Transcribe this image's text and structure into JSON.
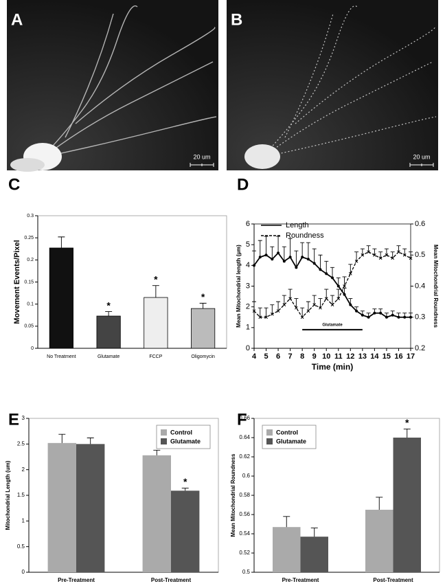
{
  "images": [
    {
      "letter": "A",
      "scale_bar": "20 um"
    },
    {
      "letter": "B",
      "scale_bar": "20 um"
    }
  ],
  "chart_data": [
    {
      "type": "bar",
      "letter": "C",
      "ylabel": "Movement Events/Pixel",
      "categories": [
        "No Treatment",
        "Glutamate",
        "FCCP",
        "Oligomycin"
      ],
      "values": [
        0.227,
        0.073,
        0.115,
        0.09
      ],
      "errors": [
        0.025,
        0.01,
        0.027,
        0.012
      ],
      "colors": [
        "#111111",
        "#444444",
        "#eeeeee",
        "#bbbbbb"
      ],
      "ylim": [
        0,
        0.3
      ],
      "yticks": [
        0,
        0.05,
        0.1,
        0.15,
        0.2,
        0.25,
        0.3
      ],
      "annotations": [
        {
          "text": "*",
          "index": 1
        },
        {
          "text": "*",
          "index": 2
        },
        {
          "text": "*",
          "index": 3
        }
      ]
    },
    {
      "type": "line",
      "letter": "D",
      "xlabel": "Time (min)",
      "ylabel": "Mean Mitochondrial length (µm)",
      "y2label": "Mean Mitochondrial Roundness",
      "x": [
        4,
        4.5,
        5,
        5.5,
        6,
        6.5,
        7,
        7.5,
        8,
        8.5,
        9,
        9.5,
        10,
        10.5,
        11,
        11.5,
        12,
        12.5,
        13,
        13.5,
        14,
        14.5,
        15,
        15.5,
        16,
        16.5,
        17
      ],
      "series": [
        {
          "name": "Length",
          "color": "#000000",
          "values": [
            4.0,
            4.4,
            4.5,
            4.3,
            4.6,
            4.2,
            4.4,
            3.9,
            4.4,
            4.3,
            4.1,
            3.8,
            3.6,
            3.4,
            3.0,
            2.6,
            2.1,
            1.8,
            1.6,
            1.5,
            1.7,
            1.7,
            1.5,
            1.6,
            1.5,
            1.5,
            1.5
          ],
          "errors": [
            0.7,
            0.8,
            0.9,
            0.6,
            0.8,
            0.7,
            0.9,
            0.8,
            0.7,
            0.8,
            0.7,
            0.7,
            0.6,
            0.5,
            0.4,
            0.3,
            0.3,
            0.2,
            0.2,
            0.2,
            0.2,
            0.2,
            0.2,
            0.2,
            0.2,
            0.2,
            0.2
          ]
        },
        {
          "name": "Roundness",
          "color": "#000000",
          "axis": "y2",
          "dash": true,
          "values": [
            0.32,
            0.3,
            0.3,
            0.31,
            0.32,
            0.34,
            0.36,
            0.33,
            0.3,
            0.32,
            0.34,
            0.33,
            0.36,
            0.34,
            0.36,
            0.4,
            0.44,
            0.48,
            0.5,
            0.51,
            0.5,
            0.49,
            0.5,
            0.49,
            0.51,
            0.5,
            0.49
          ],
          "errors": [
            0.03,
            0.03,
            0.03,
            0.03,
            0.03,
            0.03,
            0.03,
            0.03,
            0.03,
            0.03,
            0.03,
            0.03,
            0.03,
            0.03,
            0.03,
            0.03,
            0.03,
            0.03,
            0.02,
            0.02,
            0.02,
            0.02,
            0.02,
            0.02,
            0.02,
            0.02,
            0.02
          ]
        }
      ],
      "xlim": [
        4,
        17
      ],
      "xticks": [
        4,
        5,
        6,
        7,
        8,
        9,
        10,
        11,
        12,
        13,
        14,
        15,
        16,
        17
      ],
      "ylim": [
        0,
        6
      ],
      "yticks": [
        0,
        1,
        2,
        3,
        4,
        5,
        6
      ],
      "y2lim": [
        0.2,
        0.6
      ],
      "y2ticks": [
        0.2,
        0.3,
        0.4,
        0.5,
        0.6
      ],
      "annotation": {
        "text": "Glutamate",
        "x": [
          8,
          13
        ],
        "y": 0.9
      }
    },
    {
      "type": "bar",
      "letter": "E",
      "ylabel": "Mitochondrial Length (um)",
      "categories": [
        "Pre-Treatment",
        "Post-Treatment"
      ],
      "series": [
        {
          "name": "Control",
          "color": "#aaaaaa",
          "values": [
            2.52,
            2.28
          ],
          "errors": [
            0.17,
            0.1
          ]
        },
        {
          "name": "Glutamate",
          "color": "#555555",
          "values": [
            2.5,
            1.59
          ],
          "errors": [
            0.12,
            0.05
          ]
        }
      ],
      "ylim": [
        0,
        3
      ],
      "yticks": [
        0,
        0.5,
        1,
        1.5,
        2,
        2.5,
        3
      ],
      "legend": "top-right",
      "annotations": [
        {
          "text": "*",
          "series": 1,
          "index": 1
        }
      ]
    },
    {
      "type": "bar",
      "letter": "F",
      "ylabel": "Mean Mitochondrial Roundness",
      "categories": [
        "Pre-Treatment",
        "Post-Treatment"
      ],
      "series": [
        {
          "name": "Control",
          "color": "#aaaaaa",
          "values": [
            0.547,
            0.565
          ],
          "errors": [
            0.011,
            0.013
          ]
        },
        {
          "name": "Glutamate",
          "color": "#555555",
          "values": [
            0.537,
            0.64
          ],
          "errors": [
            0.009,
            0.009
          ]
        }
      ],
      "ylim": [
        0.5,
        0.66
      ],
      "yticks": [
        0.5,
        0.52,
        0.54,
        0.56,
        0.58,
        0.6,
        0.62,
        0.64,
        0.66
      ],
      "legend": "top-left",
      "annotations": [
        {
          "text": "*",
          "series": 1,
          "index": 1
        }
      ]
    }
  ]
}
